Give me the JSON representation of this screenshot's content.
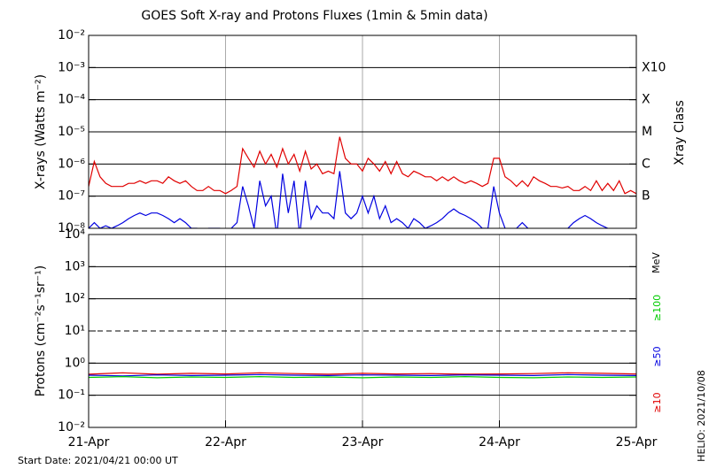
{
  "chart_data": [
    {
      "type": "line",
      "title": "GOES Soft X-ray and Protons Fluxes   (1min & 5min data)",
      "y_label": "X-rays (Watts m⁻²)",
      "log_scale": true,
      "ylim": [
        1e-08,
        0.01
      ],
      "yticks": [
        {
          "value": 0.01,
          "label": "10⁻²"
        },
        {
          "value": 0.001,
          "label": "10⁻³"
        },
        {
          "value": 0.0001,
          "label": "10⁻⁴"
        },
        {
          "value": 1e-05,
          "label": "10⁻⁵"
        },
        {
          "value": 1e-06,
          "label": "10⁻⁶"
        },
        {
          "value": 1e-07,
          "label": "10⁻⁷"
        },
        {
          "value": 1e-08,
          "label": "10⁻⁸"
        }
      ],
      "grid_values": [
        0.001,
        0.0001,
        1e-05,
        1e-06,
        1e-07
      ],
      "class_label": "Xray Class",
      "class_ticks": [
        {
          "value": 0.001,
          "label": "X10"
        },
        {
          "value": 0.0001,
          "label": "X"
        },
        {
          "value": 1e-05,
          "label": "M"
        },
        {
          "value": 1e-06,
          "label": "C"
        },
        {
          "value": 1e-07,
          "label": "B"
        }
      ],
      "xlim": [
        "2021-04-21T00:00",
        "2021-04-25T00:00"
      ],
      "x": [
        "2021-04-21T00:00",
        "2021-04-21T01:00",
        "2021-04-21T02:00",
        "2021-04-21T03:00",
        "2021-04-21T04:00",
        "2021-04-21T05:00",
        "2021-04-21T06:00",
        "2021-04-21T07:00",
        "2021-04-21T08:00",
        "2021-04-21T09:00",
        "2021-04-21T10:00",
        "2021-04-21T11:00",
        "2021-04-21T12:00",
        "2021-04-21T13:00",
        "2021-04-21T14:00",
        "2021-04-21T15:00",
        "2021-04-21T16:00",
        "2021-04-21T17:00",
        "2021-04-21T18:00",
        "2021-04-21T19:00",
        "2021-04-21T20:00",
        "2021-04-21T21:00",
        "2021-04-21T22:00",
        "2021-04-21T23:00",
        "2021-04-22T00:00",
        "2021-04-22T01:00",
        "2021-04-22T02:00",
        "2021-04-22T03:00",
        "2021-04-22T04:00",
        "2021-04-22T05:00",
        "2021-04-22T06:00",
        "2021-04-22T07:00",
        "2021-04-22T08:00",
        "2021-04-22T09:00",
        "2021-04-22T10:00",
        "2021-04-22T11:00",
        "2021-04-22T12:00",
        "2021-04-22T13:00",
        "2021-04-22T14:00",
        "2021-04-22T15:00",
        "2021-04-22T16:00",
        "2021-04-22T17:00",
        "2021-04-22T18:00",
        "2021-04-22T19:00",
        "2021-04-22T20:00",
        "2021-04-22T21:00",
        "2021-04-22T22:00",
        "2021-04-22T23:00",
        "2021-04-23T00:00",
        "2021-04-23T01:00",
        "2021-04-23T02:00",
        "2021-04-23T03:00",
        "2021-04-23T04:00",
        "2021-04-23T05:00",
        "2021-04-23T06:00",
        "2021-04-23T07:00",
        "2021-04-23T08:00",
        "2021-04-23T09:00",
        "2021-04-23T10:00",
        "2021-04-23T11:00",
        "2021-04-23T12:00",
        "2021-04-23T13:00",
        "2021-04-23T14:00",
        "2021-04-23T15:00",
        "2021-04-23T16:00",
        "2021-04-23T17:00",
        "2021-04-23T18:00",
        "2021-04-23T19:00",
        "2021-04-23T20:00",
        "2021-04-23T21:00",
        "2021-04-23T22:00",
        "2021-04-23T23:00",
        "2021-04-24T00:00",
        "2021-04-24T01:00",
        "2021-04-24T02:00",
        "2021-04-24T03:00",
        "2021-04-24T04:00",
        "2021-04-24T05:00",
        "2021-04-24T06:00",
        "2021-04-24T07:00",
        "2021-04-24T08:00",
        "2021-04-24T09:00",
        "2021-04-24T10:00",
        "2021-04-24T11:00",
        "2021-04-24T12:00",
        "2021-04-24T13:00",
        "2021-04-24T14:00",
        "2021-04-24T15:00",
        "2021-04-24T16:00",
        "2021-04-24T17:00",
        "2021-04-24T18:00",
        "2021-04-24T19:00",
        "2021-04-24T20:00",
        "2021-04-24T21:00",
        "2021-04-24T22:00",
        "2021-04-24T23:00",
        "2021-04-25T00:00"
      ],
      "series": [
        {
          "color": "#e00000",
          "values": [
            2e-07,
            1.2e-06,
            4e-07,
            2.5e-07,
            2e-07,
            2e-07,
            2e-07,
            2.5e-07,
            2.5e-07,
            3e-07,
            2.5e-07,
            3e-07,
            3e-07,
            2.5e-07,
            4e-07,
            3e-07,
            2.5e-07,
            3e-07,
            2e-07,
            1.5e-07,
            1.5e-07,
            2e-07,
            1.5e-07,
            1.5e-07,
            1.2e-07,
            1.5e-07,
            2e-07,
            3e-06,
            1.5e-06,
            8e-07,
            2.5e-06,
            1e-06,
            2e-06,
            8e-07,
            3e-06,
            1e-06,
            2e-06,
            6e-07,
            2.5e-06,
            7e-07,
            1e-06,
            5e-07,
            6e-07,
            5e-07,
            7e-06,
            1.5e-06,
            1e-06,
            1e-06,
            6e-07,
            1.5e-06,
            1e-06,
            6e-07,
            1.2e-06,
            5e-07,
            1.2e-06,
            5e-07,
            4e-07,
            6e-07,
            5e-07,
            4e-07,
            4e-07,
            3e-07,
            4e-07,
            3e-07,
            4e-07,
            3e-07,
            2.5e-07,
            3e-07,
            2.5e-07,
            2e-07,
            2.5e-07,
            1.5e-06,
            1.5e-06,
            4e-07,
            3e-07,
            2e-07,
            3e-07,
            2e-07,
            4e-07,
            3e-07,
            2.5e-07,
            2e-07,
            2e-07,
            1.8e-07,
            2e-07,
            1.5e-07,
            1.5e-07,
            2e-07,
            1.5e-07,
            3e-07,
            1.5e-07,
            2.5e-07,
            1.5e-07,
            3e-07,
            1.2e-07,
            1.5e-07,
            1.2e-07
          ]
        },
        {
          "color": "#0000e0",
          "values": [
            1e-08,
            1.5e-08,
            1e-08,
            1.2e-08,
            1e-08,
            1.2e-08,
            1.5e-08,
            2e-08,
            2.5e-08,
            3e-08,
            2.5e-08,
            3e-08,
            3e-08,
            2.5e-08,
            2e-08,
            1.5e-08,
            2e-08,
            1.5e-08,
            1e-08,
            1e-08,
            8e-09,
            1e-08,
            1e-08,
            1e-08,
            8e-09,
            1e-08,
            1.5e-08,
            2e-07,
            5e-08,
            1e-08,
            3e-07,
            5e-08,
            1e-07,
            6e-09,
            5e-07,
            3e-08,
            3e-07,
            6e-09,
            3e-07,
            2e-08,
            5e-08,
            3e-08,
            3e-08,
            2e-08,
            6e-07,
            3e-08,
            2e-08,
            3e-08,
            1e-07,
            3e-08,
            1e-07,
            2e-08,
            5e-08,
            1.5e-08,
            2e-08,
            1.5e-08,
            1e-08,
            2e-08,
            1.5e-08,
            1e-08,
            1.2e-08,
            1.5e-08,
            2e-08,
            3e-08,
            4e-08,
            3e-08,
            2.5e-08,
            2e-08,
            1.5e-08,
            1e-08,
            1e-08,
            2e-07,
            3e-08,
            1e-08,
            8e-09,
            1e-08,
            1.5e-08,
            1e-08,
            8e-09,
            8e-09,
            8e-09,
            7e-09,
            8e-09,
            8e-09,
            1e-08,
            1.5e-08,
            2e-08,
            2.5e-08,
            2e-08,
            1.5e-08,
            1.2e-08,
            1e-08,
            8e-09,
            8e-09,
            7e-09,
            7e-09,
            8e-09
          ]
        }
      ]
    },
    {
      "type": "line",
      "y_label": "Protons (cm⁻²s⁻¹sr⁻¹)",
      "log_scale": true,
      "ylim": [
        0.01,
        10000
      ],
      "yticks": [
        {
          "value": 10000,
          "label": "10⁴"
        },
        {
          "value": 1000,
          "label": "10³"
        },
        {
          "value": 100,
          "label": "10²"
        },
        {
          "value": 10,
          "label": "10¹"
        },
        {
          "value": 1,
          "label": "10⁰"
        },
        {
          "value": 0.1,
          "label": "10⁻¹"
        },
        {
          "value": 0.01,
          "label": "10⁻²"
        }
      ],
      "grid_values": [
        1000,
        100,
        1,
        0.1
      ],
      "dashed_line": 10,
      "unit_label": "MeV",
      "xlim": [
        "2021-04-21T00:00",
        "2021-04-25T00:00"
      ],
      "xticks": [
        {
          "value": "2021-04-21T00:00",
          "label": "21-Apr"
        },
        {
          "value": "2021-04-22T00:00",
          "label": "22-Apr"
        },
        {
          "value": "2021-04-23T00:00",
          "label": "23-Apr"
        },
        {
          "value": "2021-04-24T00:00",
          "label": "24-Apr"
        },
        {
          "value": "2021-04-25T00:00",
          "label": "25-Apr"
        }
      ],
      "x": [
        "2021-04-21T00:00",
        "2021-04-21T06:00",
        "2021-04-21T12:00",
        "2021-04-21T18:00",
        "2021-04-22T00:00",
        "2021-04-22T06:00",
        "2021-04-22T12:00",
        "2021-04-22T18:00",
        "2021-04-23T00:00",
        "2021-04-23T06:00",
        "2021-04-23T12:00",
        "2021-04-23T18:00",
        "2021-04-24T00:00",
        "2021-04-24T06:00",
        "2021-04-24T12:00",
        "2021-04-24T18:00",
        "2021-04-25T00:00"
      ],
      "series": [
        {
          "name": "≥10",
          "color": "#e00000",
          "values": [
            0.45,
            0.5,
            0.45,
            0.48,
            0.46,
            0.5,
            0.47,
            0.45,
            0.48,
            0.46,
            0.47,
            0.45,
            0.46,
            0.47,
            0.5,
            0.48,
            0.46
          ]
        },
        {
          "name": "≥50",
          "color": "#0000e0",
          "values": [
            0.42,
            0.4,
            0.43,
            0.41,
            0.42,
            0.44,
            0.42,
            0.41,
            0.43,
            0.42,
            0.41,
            0.43,
            0.42,
            0.41,
            0.44,
            0.42,
            0.41
          ]
        },
        {
          "name": "≥100",
          "color": "#00cc00",
          "values": [
            0.36,
            0.38,
            0.35,
            0.37,
            0.36,
            0.38,
            0.36,
            0.37,
            0.35,
            0.37,
            0.36,
            0.38,
            0.36,
            0.35,
            0.37,
            0.36,
            0.37
          ]
        }
      ],
      "footnote": "Start Date: 2021/04/21 00:00 UT",
      "credit": "HELIO: 2021/10/08"
    }
  ]
}
